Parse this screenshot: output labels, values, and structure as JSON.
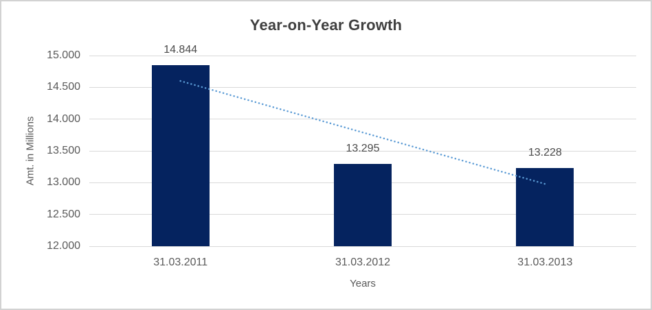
{
  "chart_data": {
    "type": "bar",
    "title": "Year-on-Year Growth",
    "xlabel": "Years",
    "ylabel": "Amt. in Millions",
    "categories": [
      "31.03.2011",
      "31.03.2012",
      "31.03.2013"
    ],
    "values": [
      14.844,
      13.295,
      13.228
    ],
    "data_labels": [
      "14.844",
      "13.295",
      "13.228"
    ],
    "ylim": [
      12.0,
      15.0
    ],
    "ytick_step": 0.5,
    "ytick_labels": [
      "12.000",
      "12.500",
      "13.000",
      "13.500",
      "14.000",
      "14.500",
      "15.000"
    ],
    "grid": true,
    "legend": "none",
    "bar_color": "#05235f",
    "gridline_color": "#d9d9d9",
    "axis_text_color": "#595959",
    "title_color": "#3f3f3f",
    "trendline": {
      "type": "linear",
      "style": "dotted",
      "color": "#5b9bd5",
      "start_value": 14.6,
      "end_value": 12.98
    }
  }
}
